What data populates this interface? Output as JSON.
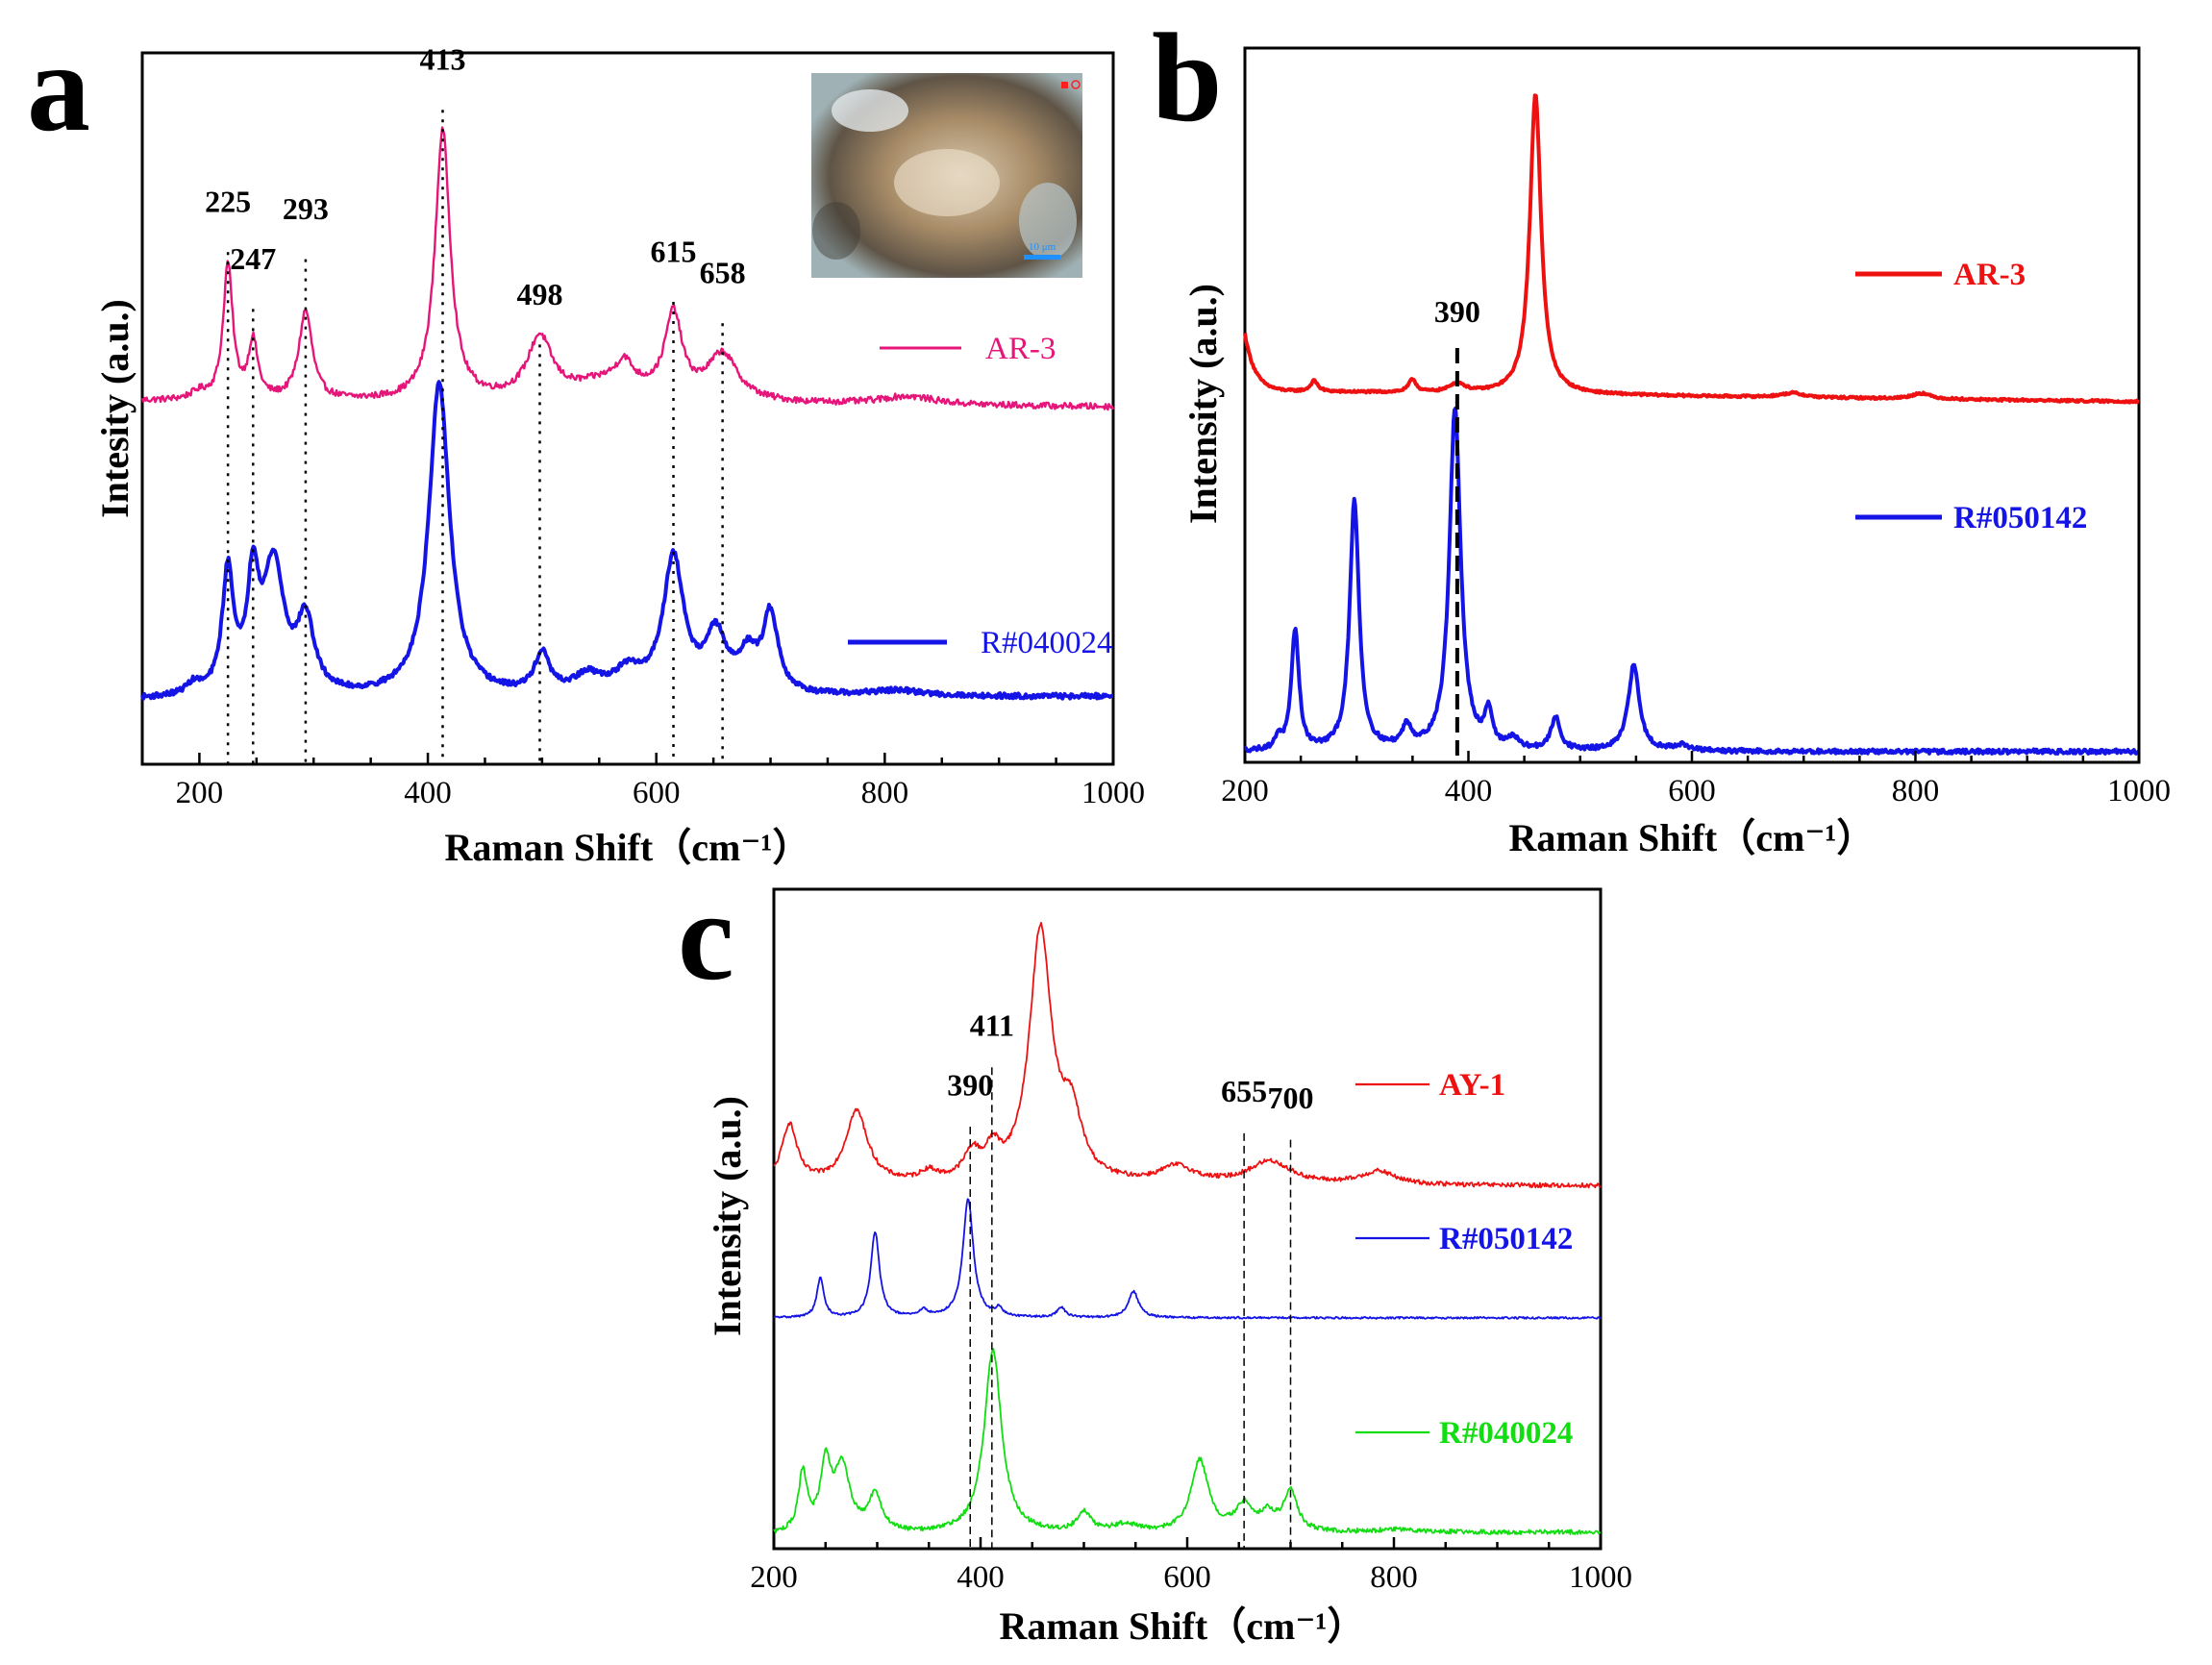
{
  "figure": {
    "panel_count": 3
  },
  "chart_data": [
    {
      "panel": "a",
      "type": "line",
      "title": "",
      "xlabel": "Raman Shift（cm⁻¹）",
      "ylabel": "Intesity  (a.u.)",
      "xlim": [
        150,
        1000
      ],
      "ylim": [
        0,
        100
      ],
      "xticks": [
        200,
        400,
        600,
        800,
        1000
      ],
      "grid": false,
      "legend_position": "right",
      "inset": {
        "description": "optical micrograph",
        "scale_text": "10 μm",
        "scale_color": "#1e90ff"
      },
      "reference_lines": [
        225,
        247,
        293,
        413,
        498,
        615,
        658
      ],
      "peak_labels": [
        {
          "text": "225",
          "x": 225,
          "y": 76
        },
        {
          "text": "247",
          "x": 247,
          "y": 68
        },
        {
          "text": "293",
          "x": 293,
          "y": 75
        },
        {
          "text": "413",
          "x": 413,
          "y": 96
        },
        {
          "text": "498",
          "x": 498,
          "y": 63
        },
        {
          "text": "615",
          "x": 615,
          "y": 69
        },
        {
          "text": "658",
          "x": 658,
          "y": 66
        }
      ],
      "series": [
        {
          "name": "AR-3",
          "color": "#e6157a",
          "style": "thin",
          "baseline": 51,
          "end_value": 50.2,
          "noise": 0.45,
          "peaks": [
            [
              200,
              1.0,
              9
            ],
            [
              225,
              19,
              5
            ],
            [
              247,
              8,
              5
            ],
            [
              293,
              12.5,
              7
            ],
            [
              413,
              38,
              8
            ],
            [
              498,
              8.5,
              13
            ],
            [
              560,
              3,
              40
            ],
            [
              572,
              3,
              8
            ],
            [
              615,
              11.5,
              9
            ],
            [
              658,
              6.5,
              16
            ],
            [
              820,
              1.2,
              30
            ]
          ]
        },
        {
          "name": "R#040024",
          "color": "#1414e6",
          "style": "thick",
          "baseline": 9,
          "end_value": 9.5,
          "noise": 0.35,
          "peaks": [
            [
              195,
              1.5,
              8
            ],
            [
              225,
              17,
              6
            ],
            [
              247,
              15,
              6
            ],
            [
              265,
              18,
              11
            ],
            [
              293,
              10,
              9
            ],
            [
              410,
              44,
              11
            ],
            [
              500,
              5.5,
              8
            ],
            [
              540,
              2.5,
              15
            ],
            [
              575,
              3,
              15
            ],
            [
              615,
              19,
              11
            ],
            [
              652,
              8,
              11
            ],
            [
              680,
              5,
              10
            ],
            [
              700,
              11,
              8
            ],
            [
              810,
              0.8,
              30
            ]
          ]
        }
      ]
    },
    {
      "panel": "b",
      "type": "line",
      "title": "",
      "xlabel": "Raman Shift（cm⁻¹）",
      "ylabel": "Intensity  (a.u.)",
      "xlim": [
        200,
        1000
      ],
      "ylim": [
        0,
        100
      ],
      "xticks": [
        200,
        400,
        600,
        800,
        1000
      ],
      "grid": false,
      "legend_position": "right",
      "reference_lines": [
        390
      ],
      "peak_labels": [
        {
          "text": "390",
          "x": 390,
          "y": 60
        }
      ],
      "series": [
        {
          "name": "AR-3",
          "color": "#ee1111",
          "style": "thick",
          "baseline": 52,
          "end_value": 50.5,
          "noise": 0.15,
          "start_tail": [
            8,
            9
          ],
          "peaks": [
            [
              262,
              1.5,
              4
            ],
            [
              350,
              1.8,
              4
            ],
            [
              390,
              1.3,
              8
            ],
            [
              460,
              42,
              6
            ],
            [
              690,
              0.6,
              12
            ],
            [
              805,
              0.8,
              10
            ]
          ]
        },
        {
          "name": "R#050142",
          "color": "#1414e6",
          "style": "thick",
          "baseline": 1.5,
          "end_value": 1.5,
          "noise": 0.3,
          "peaks": [
            [
              230,
              1.8,
              3
            ],
            [
              245,
              17,
              4
            ],
            [
              298,
              35,
              5
            ],
            [
              345,
              3,
              5
            ],
            [
              388,
              48,
              6
            ],
            [
              418,
              5,
              4
            ],
            [
              440,
              1.5,
              5
            ],
            [
              478,
              4.5,
              5
            ],
            [
              548,
              12,
              6
            ],
            [
              590,
              0.8,
              8
            ]
          ]
        }
      ]
    },
    {
      "panel": "c",
      "type": "line",
      "title": "",
      "xlabel": "Raman Shift（cm⁻¹）",
      "ylabel": "Intensity  (a.u.)",
      "xlim": [
        200,
        1000
      ],
      "ylim": [
        0,
        100
      ],
      "xticks": [
        200,
        400,
        600,
        800,
        1000
      ],
      "grid": false,
      "legend_position": "right",
      "reference_lines": [
        390,
        411,
        655,
        700
      ],
      "peak_labels": [
        {
          "text": "390",
          "x": 390,
          "y": 67
        },
        {
          "text": "411",
          "x": 411,
          "y": 76
        },
        {
          "text": "655",
          "x": 655,
          "y": 66
        },
        {
          "text": "700",
          "x": 700,
          "y": 65
        }
      ],
      "series": [
        {
          "name": "AY-1",
          "color": "#ee1111",
          "style": "thin",
          "baseline": 55,
          "end_value": 55,
          "noise": 0.35,
          "peaks": [
            [
              215,
              9,
              9
            ],
            [
              280,
              11,
              13
            ],
            [
              350,
              1.5,
              10
            ],
            [
              392,
              4,
              10
            ],
            [
              412,
              4,
              8
            ],
            [
              458,
              38,
              13
            ],
            [
              488,
              9,
              12
            ],
            [
              590,
              2.5,
              20
            ],
            [
              680,
              3.5,
              25
            ],
            [
              785,
              2,
              20
            ]
          ]
        },
        {
          "name": "R#050142",
          "color": "#1414e6",
          "style": "thin",
          "baseline": 35,
          "end_value": 35,
          "noise": 0.15,
          "peaks": [
            [
              245,
              6,
              4
            ],
            [
              298,
              13,
              5
            ],
            [
              345,
              1,
              5
            ],
            [
              388,
              18,
              6
            ],
            [
              418,
              1.2,
              4
            ],
            [
              478,
              1.5,
              5
            ],
            [
              548,
              4,
              6
            ]
          ]
        },
        {
          "name": "R#040024",
          "color": "#11dd11",
          "style": "thin",
          "baseline": 2,
          "end_value": 2.5,
          "noise": 0.35,
          "peaks": [
            [
              228,
              9,
              5
            ],
            [
              250,
              10,
              6
            ],
            [
              266,
              10,
              9
            ],
            [
              298,
              5.5,
              8
            ],
            [
              412,
              28,
              10
            ],
            [
              500,
              3,
              8
            ],
            [
              540,
              1.2,
              15
            ],
            [
              612,
              11,
              10
            ],
            [
              655,
              4,
              10
            ],
            [
              678,
              2.5,
              9
            ],
            [
              700,
              6,
              8
            ],
            [
              805,
              0.5,
              25
            ]
          ]
        }
      ]
    }
  ]
}
